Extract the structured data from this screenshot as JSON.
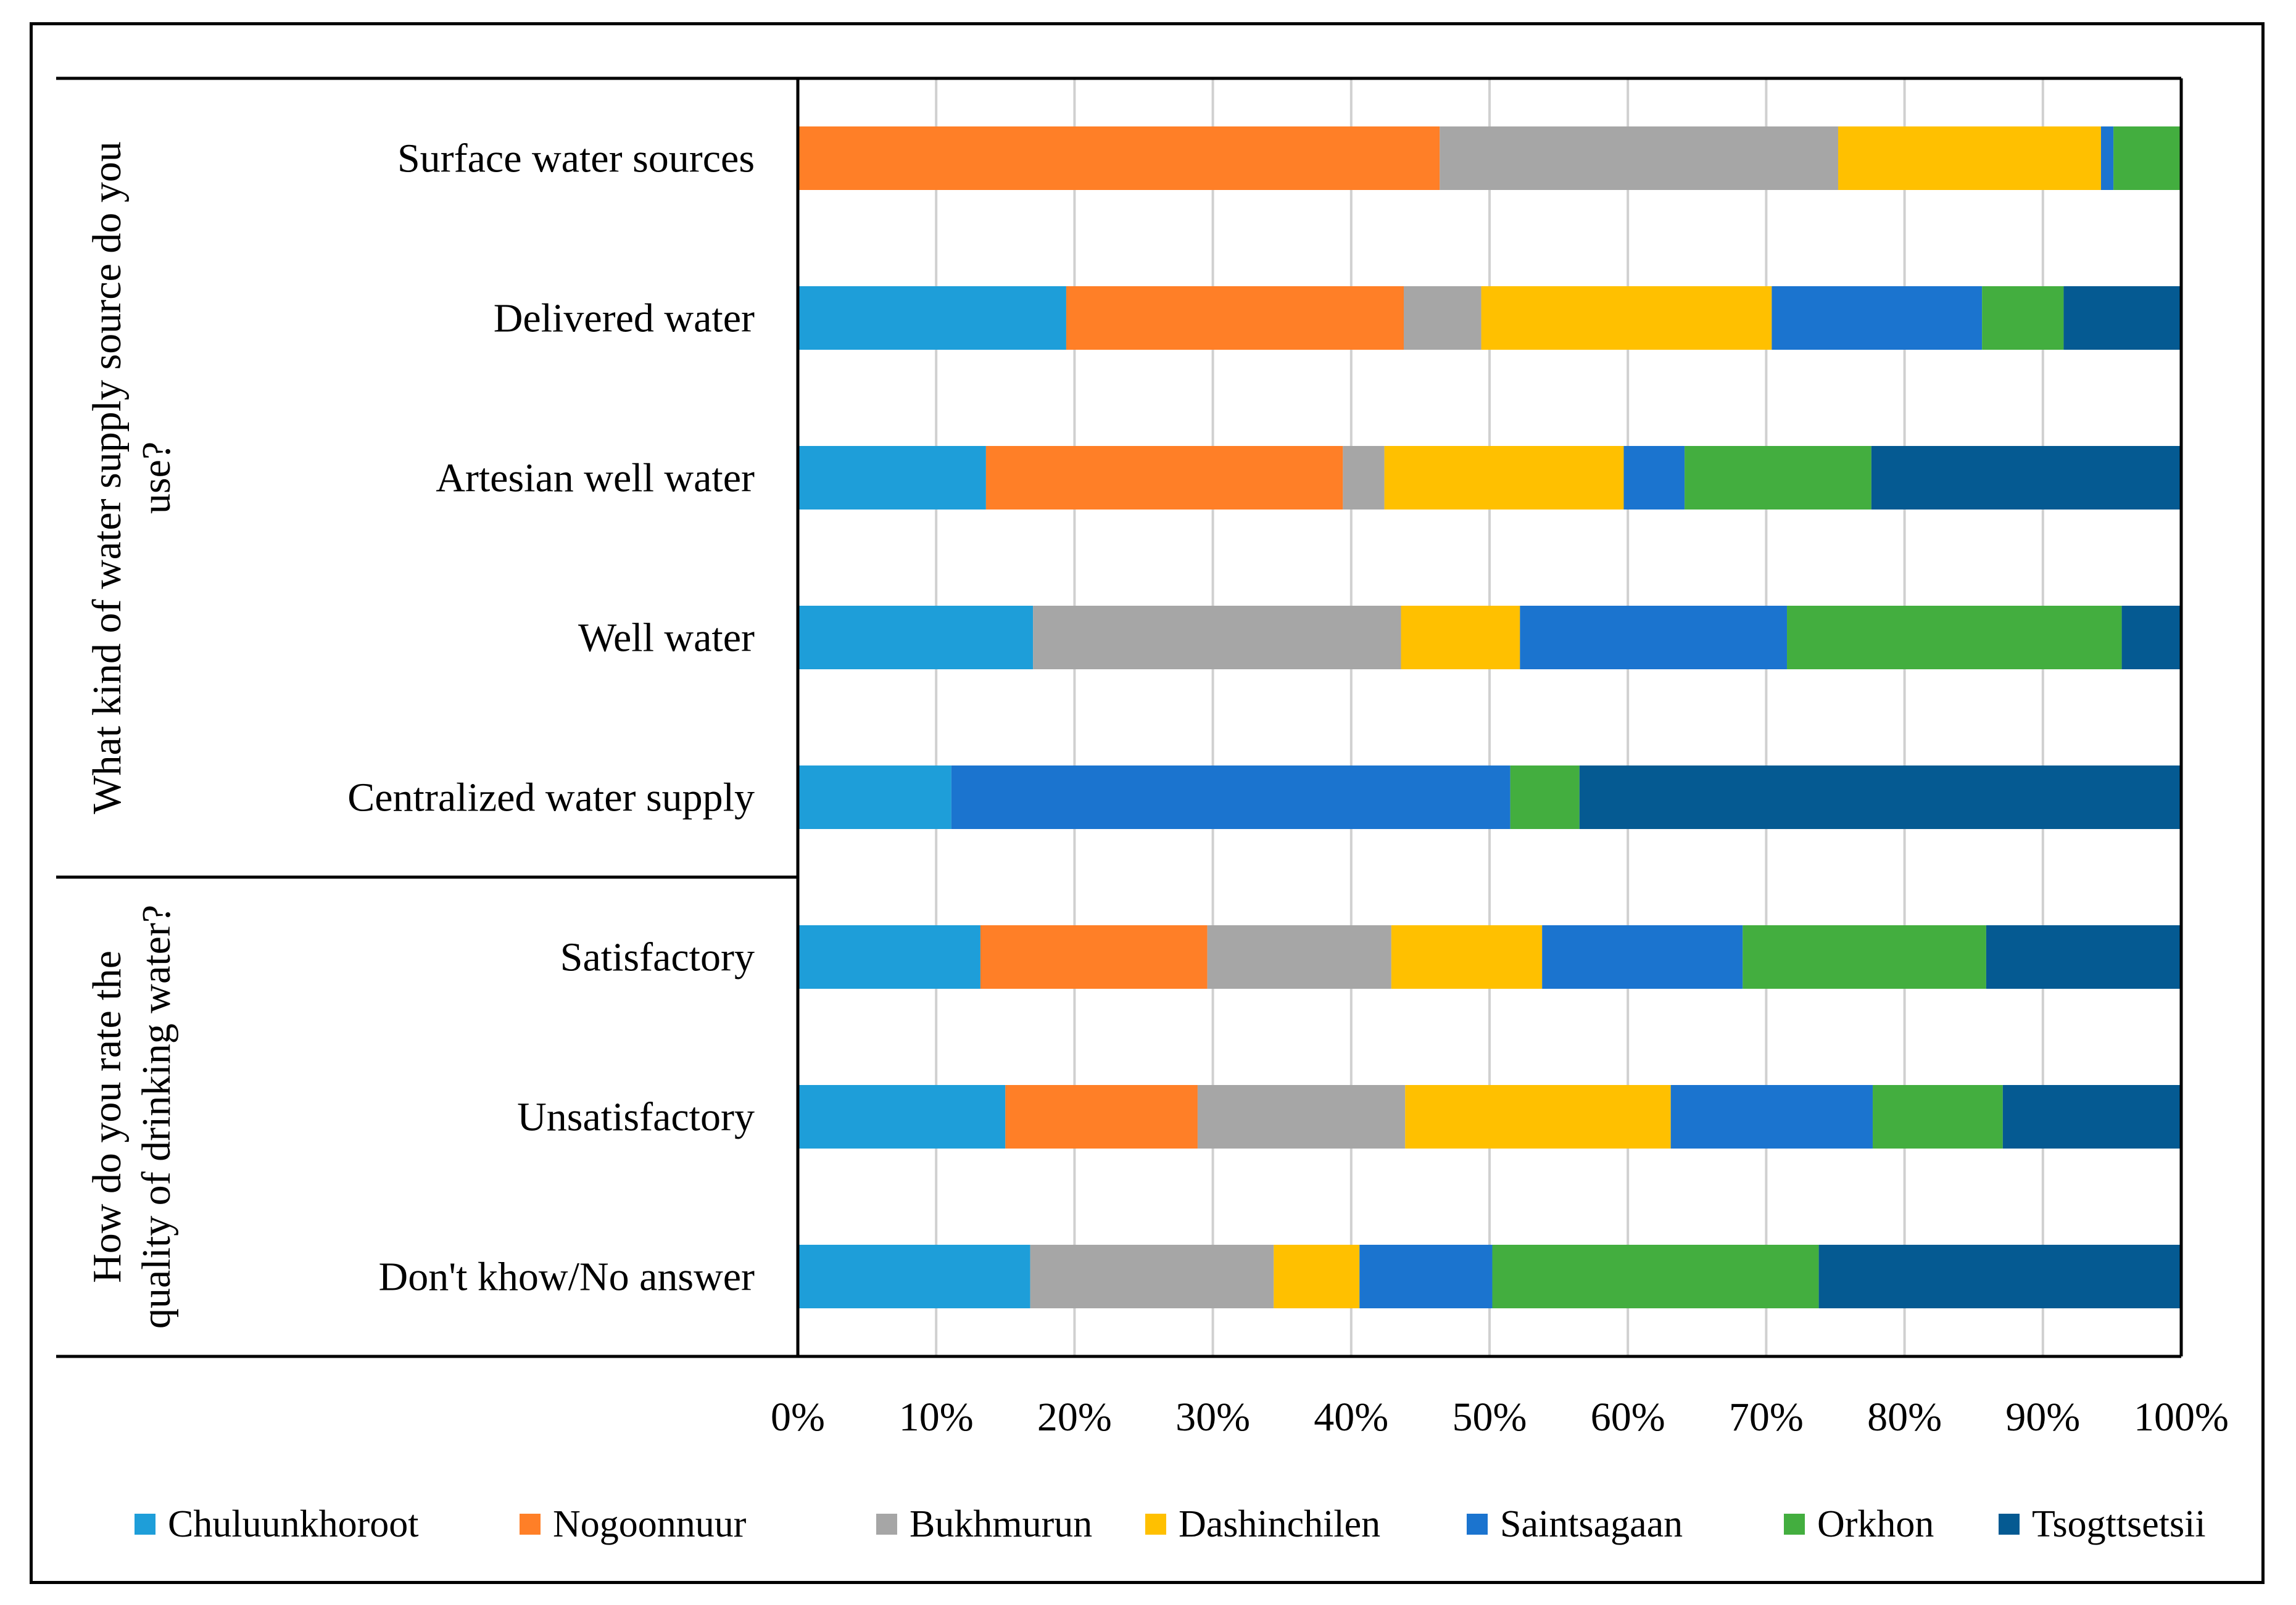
{
  "chart_data": {
    "type": "bar",
    "orientation": "horizontal",
    "stacked": "percent",
    "title": "",
    "xlabel": "",
    "ylabel": "",
    "xlim": [
      0,
      100
    ],
    "grid": true,
    "legend_position": "bottom",
    "x_ticks": [
      "0%",
      "10%",
      "20%",
      "30%",
      "40%",
      "50%",
      "60%",
      "70%",
      "80%",
      "90%",
      "100%"
    ],
    "groups": [
      {
        "label": "What kind of water supply source do you use?",
        "categories": [
          0,
          1,
          2,
          3,
          4
        ]
      },
      {
        "label": "How do you rate the quality of drinking water?",
        "categories": [
          5,
          6,
          7
        ]
      }
    ],
    "categories": [
      "Surface water sources",
      "Delivered water",
      "Artesian well water",
      "Well water",
      "Centralized water supply",
      "Satisfactory",
      "Unsatisfactory",
      "Don't khow/No answer"
    ],
    "series": [
      {
        "name": "Chuluunkhoroot",
        "color": "#1E9ED9",
        "values": [
          0,
          19.4,
          13.6,
          17.0,
          11.1,
          13.2,
          15.0,
          16.8
        ]
      },
      {
        "name": "Nogoonnuur",
        "color": "#FF7F27",
        "values": [
          46.4,
          24.4,
          25.8,
          0,
          0,
          16.4,
          13.9,
          0
        ]
      },
      {
        "name": "Bukhmurun",
        "color": "#A6A6A6",
        "values": [
          28.8,
          5.6,
          3.0,
          26.6,
          0,
          13.3,
          15.0,
          17.6
        ]
      },
      {
        "name": "Dashinchilen",
        "color": "#FFC000",
        "values": [
          19.0,
          21.0,
          17.3,
          8.6,
          0,
          10.9,
          19.2,
          6.2
        ]
      },
      {
        "name": "Saintsagaan",
        "color": "#1B74CF",
        "values": [
          0.9,
          15.2,
          4.4,
          19.3,
          40.4,
          14.5,
          14.6,
          9.6
        ]
      },
      {
        "name": "Orkhon",
        "color": "#43AE3F",
        "values": [
          4.9,
          5.9,
          13.5,
          24.2,
          5.0,
          17.6,
          9.4,
          23.6
        ]
      },
      {
        "name": "Tsogttsetsii",
        "color": "#055A92",
        "values": [
          0,
          8.5,
          22.4,
          4.3,
          43.5,
          14.1,
          12.9,
          26.2
        ]
      }
    ]
  }
}
